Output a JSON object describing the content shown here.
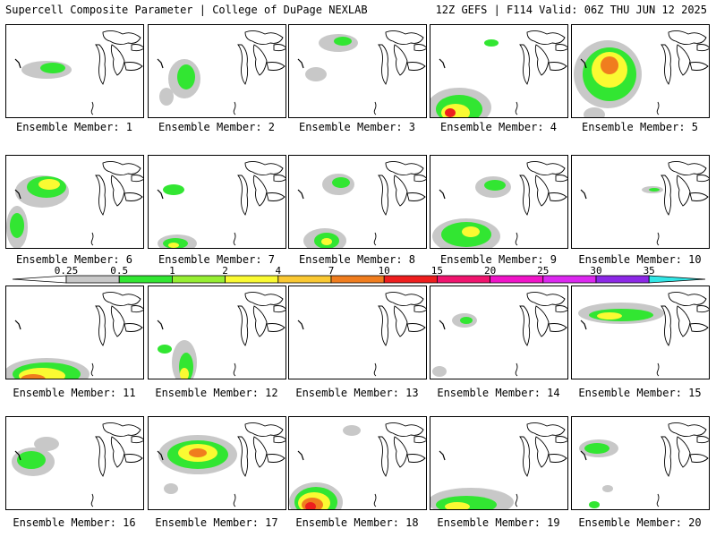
{
  "header": {
    "left": "Supercell Composite Parameter | College of DuPage NEXLAB",
    "right": "12Z GEFS | F114 Valid: 06Z THU JUN 12 2025"
  },
  "legend": {
    "ticks": [
      "0.25",
      "0.5",
      "1",
      "2",
      "4",
      "7",
      "10",
      "15",
      "20",
      "25",
      "30",
      "35"
    ],
    "colors": [
      "#c8c8c8",
      "#32e632",
      "#96ee32",
      "#fafa32",
      "#fac832",
      "#f07d1e",
      "#ee1e1e",
      "#f0146e",
      "#f014c8",
      "#dc28f0",
      "#8c28e6",
      "#b46ee6",
      "#32e6e6"
    ]
  },
  "members": [
    {
      "label": "Ensemble Member: 1",
      "blobs": [
        [
          45,
          50,
          28,
          10,
          1
        ],
        [
          52,
          48,
          14,
          6,
          2
        ],
        [
          40,
          120,
          10,
          6,
          1
        ]
      ]
    },
    {
      "label": "Ensemble Member: 2",
      "blobs": [
        [
          40,
          60,
          18,
          22,
          1
        ],
        [
          42,
          58,
          10,
          14,
          2
        ],
        [
          20,
          80,
          8,
          10,
          1
        ]
      ]
    },
    {
      "label": "Ensemble Member: 3",
      "blobs": [
        [
          55,
          20,
          22,
          10,
          1
        ],
        [
          60,
          18,
          10,
          5,
          2
        ],
        [
          30,
          55,
          12,
          8,
          1
        ]
      ]
    },
    {
      "label": "Ensemble Member: 4",
      "blobs": [
        [
          32,
          92,
          36,
          22,
          1
        ],
        [
          32,
          94,
          26,
          16,
          2
        ],
        [
          28,
          98,
          16,
          10,
          4
        ],
        [
          22,
          98,
          6,
          5,
          6
        ],
        [
          68,
          20,
          8,
          4,
          2
        ]
      ]
    },
    {
      "label": "Ensemble Member: 5",
      "blobs": [
        [
          40,
          55,
          38,
          38,
          1
        ],
        [
          42,
          55,
          30,
          30,
          2
        ],
        [
          42,
          50,
          20,
          20,
          4
        ],
        [
          42,
          45,
          10,
          10,
          5
        ],
        [
          25,
          100,
          12,
          8,
          1
        ]
      ]
    },
    {
      "label": "Ensemble Member: 6",
      "blobs": [
        [
          40,
          40,
          30,
          18,
          1
        ],
        [
          45,
          35,
          22,
          12,
          2
        ],
        [
          48,
          32,
          12,
          6,
          4
        ],
        [
          12,
          80,
          12,
          24,
          1
        ],
        [
          12,
          78,
          8,
          14,
          2
        ]
      ]
    },
    {
      "label": "Ensemble Member: 7",
      "blobs": [
        [
          28,
          38,
          12,
          6,
          2
        ],
        [
          32,
          98,
          22,
          10,
          1
        ],
        [
          30,
          98,
          14,
          6,
          2
        ],
        [
          28,
          100,
          6,
          3,
          4
        ]
      ]
    },
    {
      "label": "Ensemble Member: 8",
      "blobs": [
        [
          55,
          32,
          18,
          12,
          1
        ],
        [
          58,
          30,
          10,
          6,
          2
        ],
        [
          40,
          95,
          24,
          14,
          1
        ],
        [
          42,
          95,
          14,
          9,
          2
        ],
        [
          42,
          96,
          6,
          4,
          4
        ]
      ]
    },
    {
      "label": "Ensemble Member: 9",
      "blobs": [
        [
          70,
          35,
          20,
          12,
          1
        ],
        [
          72,
          33,
          12,
          6,
          2
        ],
        [
          40,
          90,
          38,
          20,
          1
        ],
        [
          40,
          88,
          28,
          14,
          2
        ],
        [
          45,
          85,
          10,
          6,
          4
        ]
      ]
    },
    {
      "label": "Ensemble Member: 10",
      "blobs": [
        [
          90,
          38,
          12,
          4,
          1
        ],
        [
          92,
          38,
          6,
          2,
          2
        ]
      ]
    },
    {
      "label": "Ensemble Member: 11",
      "blobs": [
        [
          45,
          98,
          48,
          18,
          1
        ],
        [
          45,
          98,
          38,
          13,
          2
        ],
        [
          40,
          100,
          26,
          9,
          4
        ],
        [
          30,
          104,
          14,
          6,
          5
        ],
        [
          22,
          106,
          6,
          3,
          6
        ]
      ]
    },
    {
      "label": "Ensemble Member: 12",
      "blobs": [
        [
          40,
          85,
          14,
          25,
          1
        ],
        [
          42,
          90,
          8,
          16,
          2
        ],
        [
          40,
          98,
          5,
          7,
          4
        ],
        [
          18,
          70,
          8,
          5,
          2
        ]
      ]
    },
    {
      "label": "Ensemble Member: 13",
      "blobs": []
    },
    {
      "label": "Ensemble Member: 14",
      "blobs": [
        [
          38,
          38,
          14,
          8,
          1
        ],
        [
          40,
          38,
          7,
          4,
          2
        ],
        [
          10,
          95,
          8,
          6,
          1
        ]
      ]
    },
    {
      "label": "Ensemble Member: 15",
      "blobs": [
        [
          55,
          30,
          48,
          12,
          1
        ],
        [
          55,
          32,
          36,
          7,
          2
        ],
        [
          42,
          33,
          14,
          4,
          4
        ]
      ]
    },
    {
      "label": "Ensemble Member: 16",
      "blobs": [
        [
          30,
          50,
          24,
          16,
          1
        ],
        [
          28,
          48,
          16,
          10,
          2
        ],
        [
          45,
          30,
          14,
          8,
          1
        ]
      ]
    },
    {
      "label": "Ensemble Member: 17",
      "blobs": [
        [
          55,
          42,
          44,
          22,
          1
        ],
        [
          55,
          42,
          34,
          16,
          2
        ],
        [
          55,
          40,
          22,
          10,
          4
        ],
        [
          55,
          40,
          10,
          5,
          5
        ],
        [
          25,
          80,
          8,
          6,
          1
        ]
      ]
    },
    {
      "label": "Ensemble Member: 18",
      "blobs": [
        [
          30,
          95,
          30,
          22,
          1
        ],
        [
          30,
          95,
          24,
          17,
          2
        ],
        [
          28,
          96,
          18,
          12,
          4
        ],
        [
          26,
          98,
          12,
          8,
          5
        ],
        [
          24,
          100,
          6,
          5,
          6
        ],
        [
          70,
          15,
          10,
          6,
          1
        ]
      ]
    },
    {
      "label": "Ensemble Member: 19",
      "blobs": [
        [
          45,
          95,
          48,
          16,
          1
        ],
        [
          40,
          98,
          34,
          10,
          2
        ],
        [
          30,
          100,
          14,
          5,
          4
        ]
      ]
    },
    {
      "label": "Ensemble Member: 20",
      "blobs": [
        [
          30,
          35,
          22,
          10,
          1
        ],
        [
          28,
          35,
          14,
          6,
          2
        ],
        [
          25,
          98,
          6,
          4,
          2
        ],
        [
          40,
          80,
          6,
          4,
          1
        ]
      ]
    }
  ]
}
